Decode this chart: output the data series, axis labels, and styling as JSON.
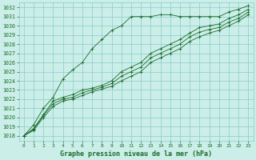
{
  "title": "Graphe pression niveau de la mer (hPa)",
  "bg_color": "#cceee8",
  "grid_color": "#88cccc",
  "line_color": "#1a6b2a",
  "ylim": [
    1017.5,
    1032.5
  ],
  "xlim": [
    -0.5,
    23.5
  ],
  "yticks": [
    1018,
    1019,
    1020,
    1021,
    1022,
    1023,
    1024,
    1025,
    1026,
    1027,
    1028,
    1029,
    1030,
    1031,
    1032
  ],
  "xticks": [
    0,
    1,
    2,
    3,
    4,
    5,
    6,
    7,
    8,
    9,
    10,
    11,
    12,
    13,
    14,
    15,
    16,
    17,
    18,
    19,
    20,
    21,
    22,
    23
  ],
  "series": [
    [
      1018.0,
      1019.2,
      1021.0,
      1022.2,
      1024.2,
      1025.2,
      1026.0,
      1027.5,
      1028.5,
      1029.5,
      1030.0,
      1031.0,
      1031.0,
      1031.0,
      1031.2,
      1031.2,
      1031.0,
      1031.0,
      1031.0,
      1031.0,
      1031.0,
      1031.5,
      1031.8,
      1032.2
    ],
    [
      1018.0,
      1018.8,
      1020.3,
      1021.8,
      1022.2,
      1022.5,
      1023.0,
      1023.2,
      1023.5,
      1024.0,
      1025.0,
      1025.5,
      1026.0,
      1027.0,
      1027.5,
      1028.0,
      1028.5,
      1029.2,
      1029.8,
      1030.0,
      1030.2,
      1030.8,
      1031.2,
      1031.8
    ],
    [
      1018.0,
      1018.7,
      1020.2,
      1021.5,
      1022.0,
      1022.2,
      1022.7,
      1023.0,
      1023.3,
      1023.7,
      1024.5,
      1025.0,
      1025.5,
      1026.5,
      1027.0,
      1027.5,
      1028.0,
      1028.8,
      1029.3,
      1029.6,
      1029.8,
      1030.4,
      1030.8,
      1031.5
    ],
    [
      1018.0,
      1018.6,
      1020.0,
      1021.2,
      1021.8,
      1022.0,
      1022.4,
      1022.8,
      1023.1,
      1023.4,
      1024.0,
      1024.5,
      1025.0,
      1026.0,
      1026.5,
      1027.0,
      1027.5,
      1028.3,
      1028.8,
      1029.2,
      1029.5,
      1030.0,
      1030.5,
      1031.2
    ]
  ],
  "marker": "+",
  "xlabel_fontsize": 6,
  "tick_fontsize": 5
}
